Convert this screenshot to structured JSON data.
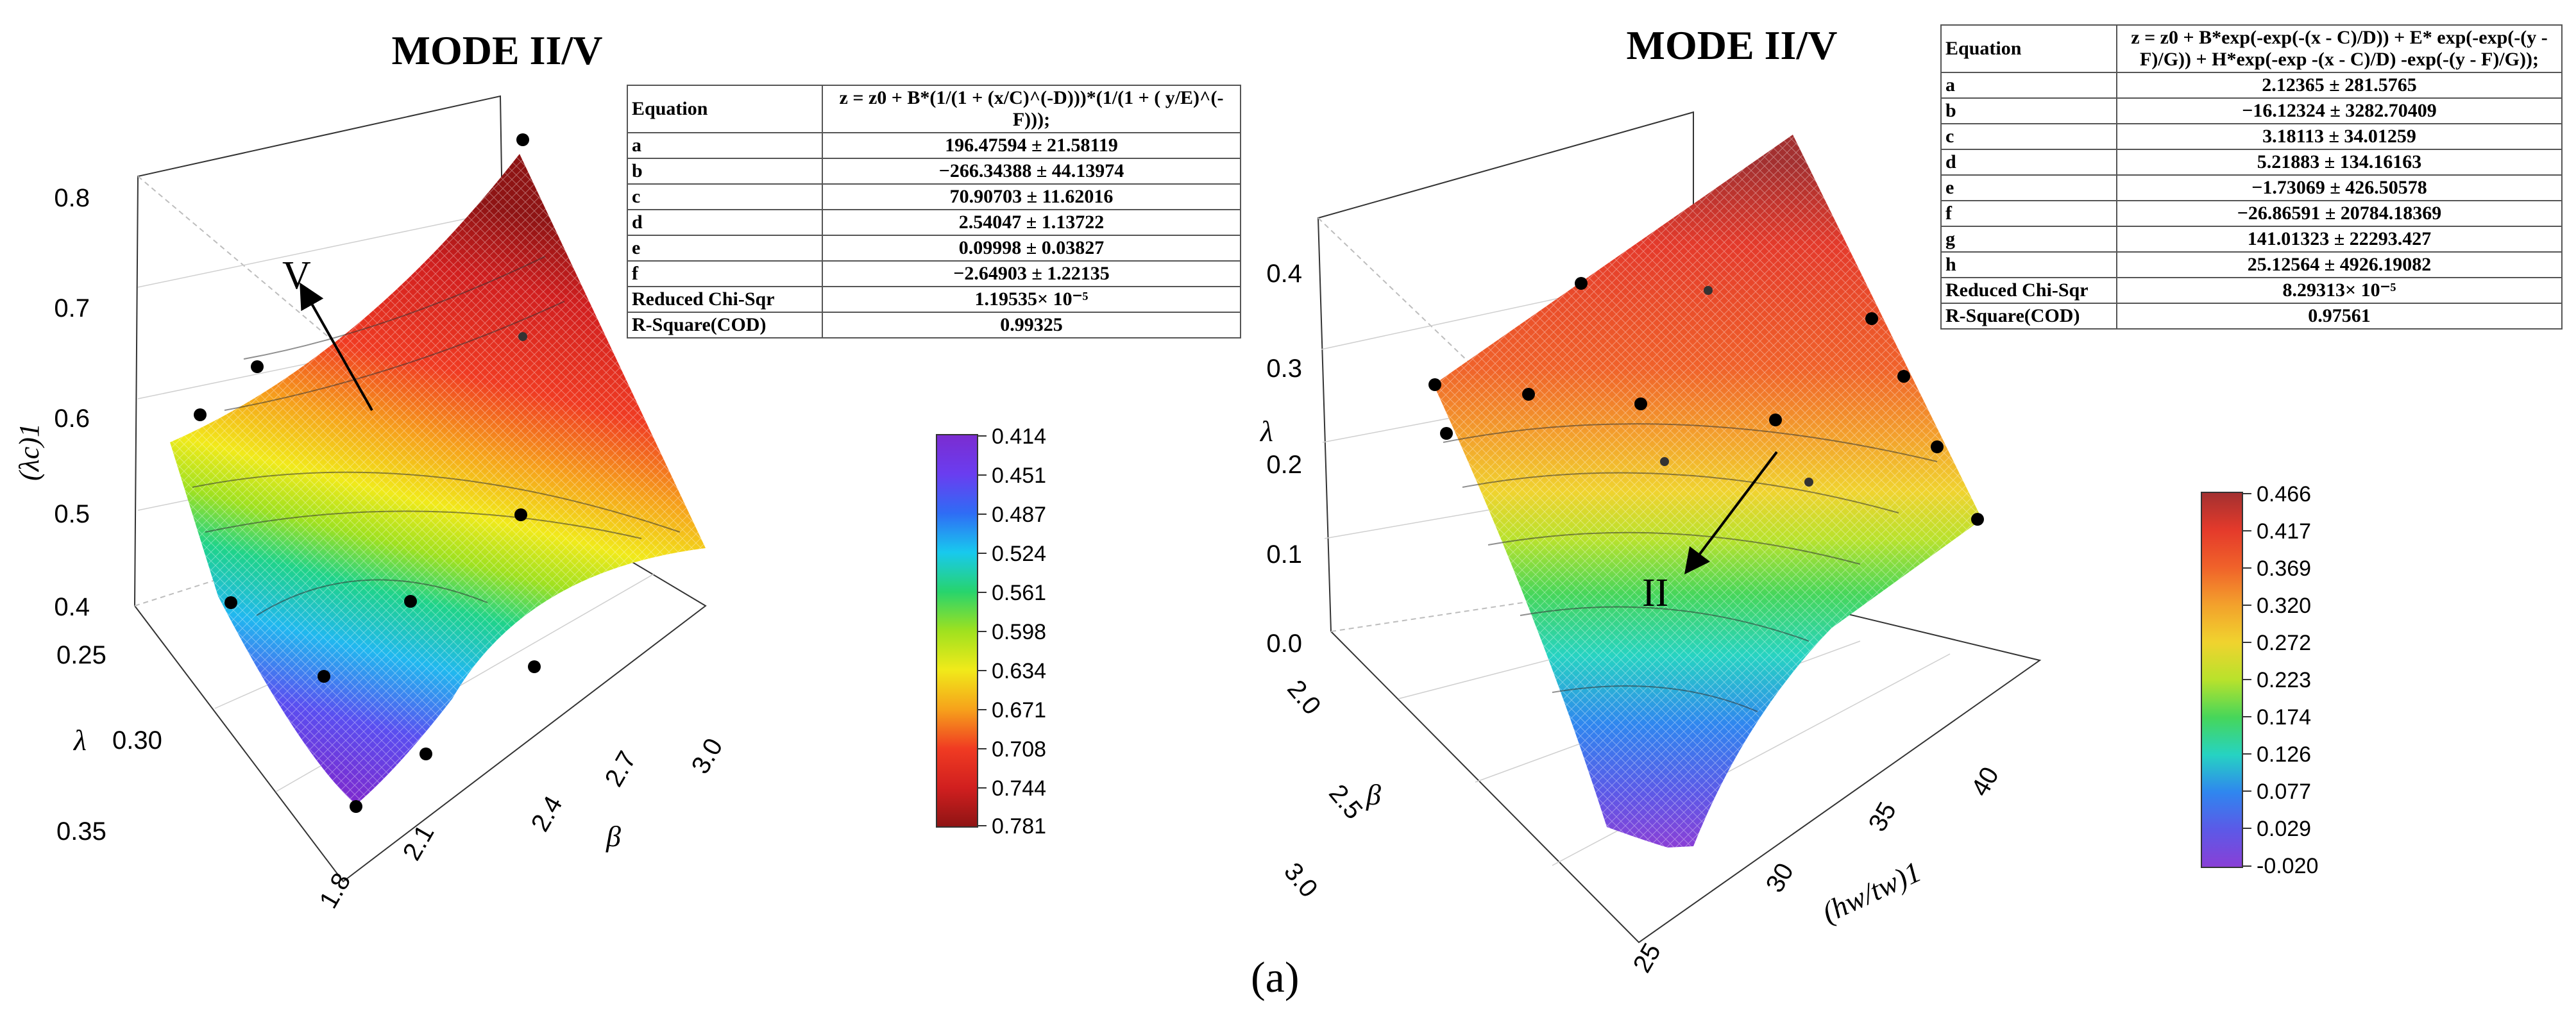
{
  "caption": "(a)",
  "colors": {
    "axis": "#333333",
    "grid": "#bdbdbd",
    "mesh": "#ffffff",
    "points": "#000000"
  },
  "chart_data": [
    {
      "type": "surface3d",
      "title": "MODE II/V",
      "zlabel": "(λc)1",
      "xlabel": "β",
      "ylabel": "λ",
      "z_ticks": [
        "0.4",
        "0.5",
        "0.6",
        "0.7",
        "0.8"
      ],
      "x_ticks": [
        "1.8",
        "2.1",
        "2.4",
        "2.7",
        "3.0"
      ],
      "y_ticks": [
        "0.25",
        "0.30",
        "0.35"
      ],
      "zlim": [
        0.4,
        0.8
      ],
      "xlim": [
        1.8,
        3.0
      ],
      "ylim": [
        0.25,
        0.35
      ],
      "annotation": "V",
      "colorbar": {
        "ticks": [
          "0.414",
          "0.451",
          "0.487",
          "0.524",
          "0.561",
          "0.598",
          "0.634",
          "0.671",
          "0.708",
          "0.744",
          "0.781"
        ],
        "colors": [
          "#7b2cd0",
          "#6a3df0",
          "#2f6cf5",
          "#18c9ee",
          "#27d46d",
          "#9fe11f",
          "#f1ea1a",
          "#f6a21b",
          "#f03b22",
          "#d11f1f",
          "#8e1414"
        ]
      },
      "fit_table": {
        "rows": [
          [
            "Equation",
            "z = z0 + B*(1/(1 + (x/C)^(-D)))*(1/(1 + ( y/E)^(-F)));"
          ],
          [
            "a",
            "196.47594 ± 21.58119"
          ],
          [
            "b",
            "−266.34388 ± 44.13974"
          ],
          [
            "c",
            "70.90703 ± 11.62016"
          ],
          [
            "d",
            "2.54047 ± 1.13722"
          ],
          [
            "e",
            "0.09998 ± 0.03827"
          ],
          [
            "f",
            "−2.64903 ± 1.22135"
          ],
          [
            "Reduced Chi-Sqr",
            "1.19535× 10⁻⁵"
          ],
          [
            "R-Square(COD)",
            "0.99325"
          ]
        ]
      }
    },
    {
      "type": "surface3d",
      "title": "MODE II/V",
      "zlabel": "λ",
      "xlabel": "(hw/tw)1",
      "ylabel": "β",
      "z_ticks": [
        "0.0",
        "0.1",
        "0.2",
        "0.3",
        "0.4"
      ],
      "x_ticks": [
        "25",
        "30",
        "35",
        "40"
      ],
      "y_ticks": [
        "2.0",
        "2.5",
        "3.0"
      ],
      "zlim": [
        0.0,
        0.45
      ],
      "xlim": [
        25,
        40
      ],
      "ylim": [
        2.0,
        3.0
      ],
      "annotation": "II",
      "colorbar": {
        "ticks": [
          "0.466",
          "0.417",
          "0.369",
          "0.320",
          "0.272",
          "0.223",
          "0.174",
          "0.126",
          "0.077",
          "0.029",
          "-0.020"
        ],
        "colors": [
          "#a33030",
          "#e43a2b",
          "#f0622a",
          "#f3a12c",
          "#f0d32e",
          "#b8e22c",
          "#46d65a",
          "#26d3c2",
          "#2f86ef",
          "#5c59e7",
          "#8a3fd6"
        ]
      },
      "fit_table": {
        "rows": [
          [
            "Equation",
            "z = z0 + B*exp(-exp(-(x - C)/D)) + E* exp(-exp(-(y - F)/G)) + H*exp(-exp -(x - C)/D) -exp(-(y - F)/G));"
          ],
          [
            "a",
            "2.12365 ± 281.5765"
          ],
          [
            "b",
            "−16.12324 ± 3282.70409"
          ],
          [
            "c",
            "3.18113 ± 34.01259"
          ],
          [
            "d",
            "5.21883 ± 134.16163"
          ],
          [
            "e",
            "−1.73069 ± 426.50578"
          ],
          [
            "f",
            "−26.86591 ± 20784.18369"
          ],
          [
            "g",
            "141.01323 ± 22293.427"
          ],
          [
            "h",
            "25.12564 ± 4926.19082"
          ],
          [
            "Reduced Chi-Sqr",
            "8.29313× 10⁻⁵"
          ],
          [
            "R-Square(COD)",
            "0.97561"
          ]
        ]
      }
    }
  ]
}
